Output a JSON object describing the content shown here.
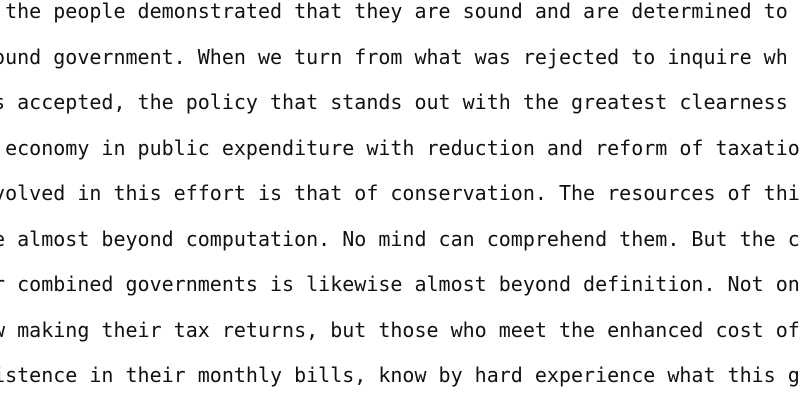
{
  "document": {
    "lines": [
      "f the people demonstrated that they are sound and are determined to h",
      " sound government. When we turn from what was rejected to inquire wh",
      "as accepted, the policy that stands out with the greatest clearness",
      "f economy in public expenditure with reduction and reform of taxatio",
      "nvolved in this effort is that of conservation. The resources of thi",
      "re almost beyond computation. No mind can comprehend them. But the c",
      "ur combined governments is likewise almost beyond definition. Not on",
      "ow making their tax returns, but those who meet the enhanced cost of",
      "xistence in their monthly bills, know by hard experience what this g"
    ],
    "text_color": "#111111",
    "background_color": "#ffffff"
  }
}
